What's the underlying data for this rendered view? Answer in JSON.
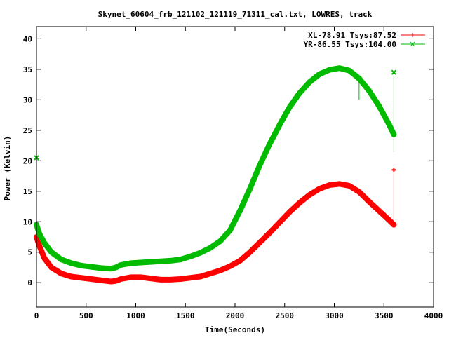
{
  "chart_data": {
    "type": "line",
    "title": "Skynet_60604_frb_121102_121119_71311_cal.txt, LOWRES, track",
    "xlabel": "Time(Seconds)",
    "ylabel": "Power (Kelvin)",
    "xlim": [
      0,
      4000
    ],
    "ylim": [
      -4,
      42
    ],
    "xticks": [
      0,
      500,
      1000,
      1500,
      2000,
      2500,
      3000,
      3500,
      4000
    ],
    "yticks": [
      0,
      5,
      10,
      15,
      20,
      25,
      30,
      35,
      40
    ],
    "grid": false,
    "legend_position": "top-right",
    "series": [
      {
        "name": "XL-78.91 Tsys:87.52",
        "color": "#ff0000",
        "marker": "plus",
        "x": [
          0,
          30,
          80,
          150,
          250,
          350,
          450,
          550,
          650,
          750,
          800,
          850,
          950,
          1050,
          1150,
          1250,
          1350,
          1450,
          1550,
          1650,
          1750,
          1850,
          1950,
          2050,
          2150,
          2250,
          2350,
          2450,
          2550,
          2650,
          2750,
          2850,
          2950,
          3050,
          3150,
          3250,
          3350,
          3450,
          3550,
          3600
        ],
        "values": [
          7.5,
          6.0,
          4.0,
          2.5,
          1.5,
          1.0,
          0.8,
          0.6,
          0.4,
          0.2,
          0.3,
          0.6,
          0.9,
          0.9,
          0.7,
          0.5,
          0.5,
          0.6,
          0.8,
          1.0,
          1.5,
          2.0,
          2.7,
          3.6,
          5.0,
          6.6,
          8.2,
          9.9,
          11.6,
          13.1,
          14.4,
          15.4,
          16.0,
          16.2,
          15.9,
          14.9,
          13.3,
          11.8,
          10.3,
          9.5
        ]
      },
      {
        "name": "YR-86.55 Tsys:104.00",
        "color": "#00bb00",
        "marker": "cross",
        "x": [
          0,
          30,
          80,
          150,
          250,
          350,
          450,
          550,
          650,
          750,
          800,
          850,
          950,
          1050,
          1150,
          1250,
          1350,
          1450,
          1550,
          1650,
          1750,
          1850,
          1950,
          2050,
          2150,
          2250,
          2350,
          2450,
          2550,
          2650,
          2750,
          2850,
          2950,
          3050,
          3150,
          3250,
          3350,
          3450,
          3550,
          3600
        ],
        "values": [
          9.5,
          8.0,
          6.5,
          5.0,
          3.8,
          3.2,
          2.8,
          2.6,
          2.4,
          2.3,
          2.5,
          2.9,
          3.2,
          3.3,
          3.4,
          3.5,
          3.6,
          3.8,
          4.3,
          4.9,
          5.7,
          6.8,
          8.6,
          11.8,
          15.4,
          19.3,
          22.8,
          25.9,
          28.8,
          31.1,
          32.9,
          34.2,
          34.9,
          35.2,
          34.8,
          33.5,
          31.5,
          29.0,
          26.0,
          24.3
        ]
      }
    ],
    "spikes": [
      {
        "series": 0,
        "x": 3600,
        "y_from": 9.5,
        "y_to": 18.5
      },
      {
        "series": 1,
        "x": 3600,
        "y_from": 21.5,
        "y_to": 34.5
      },
      {
        "series": 1,
        "x": 0,
        "y_from": 9.5,
        "y_to": 20.5
      },
      {
        "series": 1,
        "x": 3250,
        "y_from": 30.0,
        "y_to": 33.5
      }
    ]
  }
}
